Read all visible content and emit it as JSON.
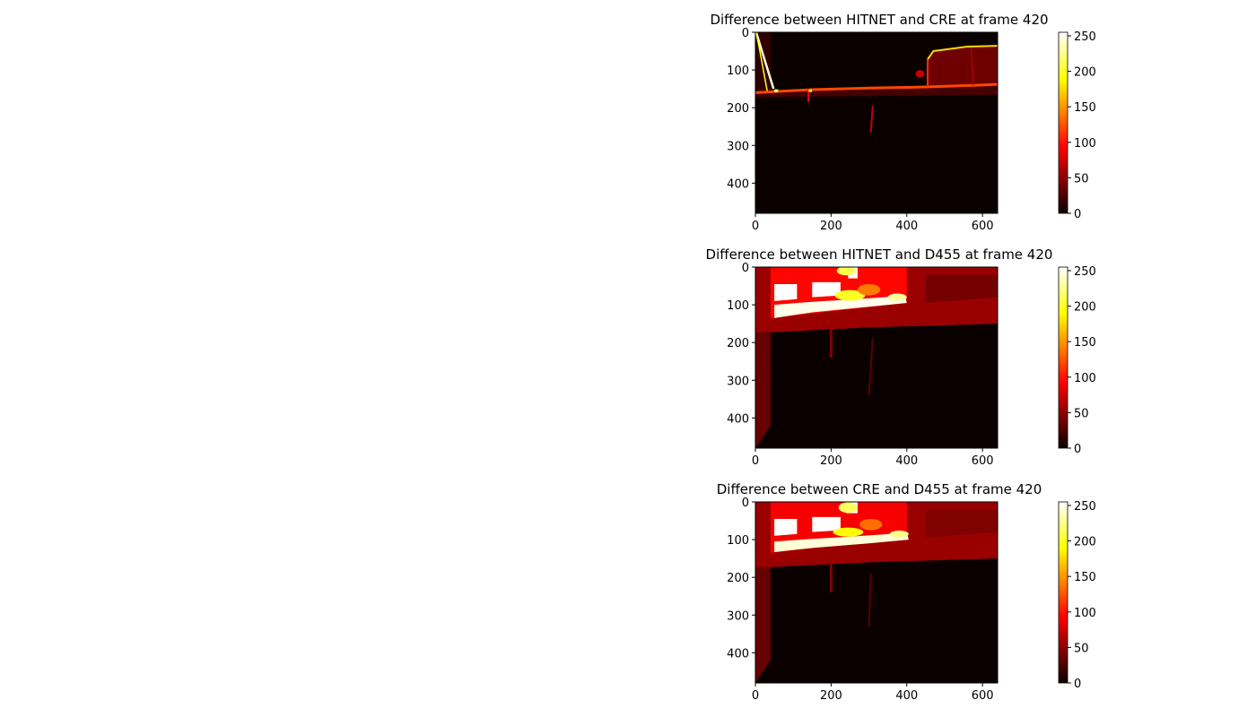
{
  "chart_data": [
    {
      "type": "heatmap",
      "title": "Difference between HITNET and CRE at frame 420",
      "xlim": [
        0,
        640
      ],
      "ylim": [
        480,
        0
      ],
      "xticks": [
        0,
        200,
        400,
        600
      ],
      "yticks": [
        0,
        100,
        200,
        300,
        400
      ],
      "colormap": "hot",
      "colorbar": {
        "range": [
          0,
          255
        ],
        "ticks": [
          0,
          50,
          100,
          150,
          200,
          250
        ]
      },
      "features": [
        {
          "kind": "poly",
          "pts": [
            [
              0,
              160
            ],
            [
              150,
              152
            ],
            [
              300,
              148
            ],
            [
              450,
              145
            ],
            [
              600,
              140
            ],
            [
              640,
              138
            ],
            [
              640,
              166
            ],
            [
              0,
              172
            ]
          ],
          "v": 22
        },
        {
          "kind": "poly",
          "pts": [
            [
              455,
              72
            ],
            [
              470,
              50
            ],
            [
              560,
              38
            ],
            [
              640,
              36
            ],
            [
              640,
              140
            ],
            [
              455,
              148
            ]
          ],
          "v": 38
        },
        {
          "kind": "poly",
          "pts": [
            [
              0,
              0
            ],
            [
              40,
              0
            ],
            [
              40,
              160
            ],
            [
              0,
              165
            ]
          ],
          "v": 14
        },
        {
          "kind": "line",
          "pts": [
            [
              2,
              0
            ],
            [
              25,
              75
            ],
            [
              48,
              150
            ]
          ],
          "v": 245,
          "w": 2.5
        },
        {
          "kind": "line",
          "pts": [
            [
              2,
              0
            ],
            [
              10,
              40
            ],
            [
              32,
              160
            ]
          ],
          "v": 200,
          "w": 1.5
        },
        {
          "kind": "line",
          "pts": [
            [
              0,
              160
            ],
            [
              150,
              152
            ],
            [
              300,
              148
            ],
            [
              450,
              145
            ],
            [
              600,
              140
            ],
            [
              640,
              138
            ]
          ],
          "v": 120,
          "w": 3
        },
        {
          "kind": "line",
          "pts": [
            [
              455,
              72
            ],
            [
              470,
              50
            ],
            [
              560,
              38
            ],
            [
              640,
              36
            ]
          ],
          "v": 175,
          "w": 2
        },
        {
          "kind": "line",
          "pts": [
            [
              455,
              72
            ],
            [
              455,
              145
            ]
          ],
          "v": 110,
          "w": 2
        },
        {
          "kind": "line",
          "pts": [
            [
              310,
              195
            ],
            [
              305,
              265
            ]
          ],
          "v": 70,
          "w": 2
        },
        {
          "kind": "line",
          "pts": [
            [
              140,
              150
            ],
            [
              140,
              185
            ]
          ],
          "v": 90,
          "w": 2
        },
        {
          "kind": "line",
          "pts": [
            [
              570,
              42
            ],
            [
              575,
              140
            ]
          ],
          "v": 60,
          "w": 1.5
        },
        {
          "kind": "blob",
          "cx": 55,
          "cy": 155,
          "rx": 6,
          "ry": 4,
          "v": 220
        },
        {
          "kind": "blob",
          "cx": 145,
          "cy": 155,
          "rx": 5,
          "ry": 4,
          "v": 180
        },
        {
          "kind": "blob",
          "cx": 435,
          "cy": 110,
          "rx": 12,
          "ry": 10,
          "v": 70
        }
      ]
    },
    {
      "type": "heatmap",
      "title": "Difference between HITNET and D455 at frame 420",
      "xlim": [
        0,
        640
      ],
      "ylim": [
        480,
        0
      ],
      "xticks": [
        0,
        200,
        400,
        600
      ],
      "yticks": [
        0,
        100,
        200,
        300,
        400
      ],
      "colormap": "hot",
      "colorbar": {
        "range": [
          0,
          255
        ],
        "ticks": [
          0,
          50,
          100,
          150,
          200,
          250
        ]
      },
      "features": [
        {
          "kind": "poly",
          "pts": [
            [
              0,
              0
            ],
            [
              640,
              0
            ],
            [
              640,
              150
            ],
            [
              300,
              160
            ],
            [
              0,
              175
            ]
          ],
          "v": 55
        },
        {
          "kind": "poly",
          "pts": [
            [
              0,
              175
            ],
            [
              40,
              170
            ],
            [
              40,
              420
            ],
            [
              0,
              480
            ]
          ],
          "v": 35
        },
        {
          "kind": "poly",
          "pts": [
            [
              40,
              0
            ],
            [
              400,
              0
            ],
            [
              400,
              95
            ],
            [
              40,
              135
            ]
          ],
          "v": 95
        },
        {
          "kind": "poly",
          "pts": [
            [
              450,
              20
            ],
            [
              640,
              20
            ],
            [
              640,
              80
            ],
            [
              450,
              95
            ]
          ],
          "v": 40
        },
        {
          "kind": "poly",
          "pts": [
            [
              50,
              100
            ],
            [
              150,
              92
            ],
            [
              250,
              86
            ],
            [
              340,
              80
            ],
            [
              395,
              75
            ],
            [
              400,
              95
            ],
            [
              300,
              105
            ],
            [
              150,
              120
            ],
            [
              50,
              135
            ]
          ],
          "v": 250
        },
        {
          "kind": "poly",
          "pts": [
            [
              50,
              45
            ],
            [
              110,
              45
            ],
            [
              110,
              85
            ],
            [
              50,
              90
            ]
          ],
          "v": 255
        },
        {
          "kind": "poly",
          "pts": [
            [
              150,
              40
            ],
            [
              225,
              40
            ],
            [
              225,
              75
            ],
            [
              150,
              80
            ]
          ],
          "v": 255
        },
        {
          "kind": "poly",
          "pts": [
            [
              245,
              0
            ],
            [
              270,
              0
            ],
            [
              270,
              30
            ],
            [
              245,
              30
            ]
          ],
          "v": 255
        },
        {
          "kind": "blob",
          "cx": 240,
          "cy": 10,
          "rx": 25,
          "ry": 12,
          "v": 210
        },
        {
          "kind": "blob",
          "cx": 250,
          "cy": 75,
          "rx": 40,
          "ry": 14,
          "v": 200
        },
        {
          "kind": "blob",
          "cx": 300,
          "cy": 60,
          "rx": 30,
          "ry": 15,
          "v": 140
        },
        {
          "kind": "blob",
          "cx": 375,
          "cy": 80,
          "rx": 25,
          "ry": 10,
          "v": 230
        },
        {
          "kind": "line",
          "pts": [
            [
              200,
              160
            ],
            [
              200,
              240
            ]
          ],
          "v": 45,
          "w": 3
        },
        {
          "kind": "line",
          "pts": [
            [
              310,
              190
            ],
            [
              300,
              340
            ]
          ],
          "v": 30,
          "w": 2
        }
      ]
    },
    {
      "type": "heatmap",
      "title": "Difference between CRE and D455 at frame 420",
      "xlim": [
        0,
        640
      ],
      "ylim": [
        480,
        0
      ],
      "xticks": [
        0,
        200,
        400,
        600
      ],
      "yticks": [
        0,
        100,
        200,
        300,
        400
      ],
      "colormap": "hot",
      "colorbar": {
        "range": [
          0,
          255
        ],
        "ticks": [
          0,
          50,
          100,
          150,
          200,
          250
        ]
      },
      "features": [
        {
          "kind": "poly",
          "pts": [
            [
              0,
              0
            ],
            [
              640,
              0
            ],
            [
              640,
              150
            ],
            [
              300,
              160
            ],
            [
              0,
              175
            ]
          ],
          "v": 55
        },
        {
          "kind": "poly",
          "pts": [
            [
              0,
              175
            ],
            [
              40,
              170
            ],
            [
              40,
              420
            ],
            [
              0,
              480
            ]
          ],
          "v": 35
        },
        {
          "kind": "poly",
          "pts": [
            [
              40,
              0
            ],
            [
              400,
              0
            ],
            [
              400,
              95
            ],
            [
              40,
              135
            ]
          ],
          "v": 90
        },
        {
          "kind": "poly",
          "pts": [
            [
              450,
              20
            ],
            [
              640,
              20
            ],
            [
              640,
              80
            ],
            [
              450,
              95
            ]
          ],
          "v": 45
        },
        {
          "kind": "poly",
          "pts": [
            [
              50,
              105
            ],
            [
              150,
              98
            ],
            [
              250,
              92
            ],
            [
              340,
              86
            ],
            [
              400,
              80
            ],
            [
              405,
              100
            ],
            [
              300,
              110
            ],
            [
              150,
              122
            ],
            [
              50,
              133
            ]
          ],
          "v": 245
        },
        {
          "kind": "poly",
          "pts": [
            [
              50,
              45
            ],
            [
              110,
              45
            ],
            [
              110,
              85
            ],
            [
              50,
              90
            ]
          ],
          "v": 255
        },
        {
          "kind": "poly",
          "pts": [
            [
              150,
              40
            ],
            [
              225,
              40
            ],
            [
              225,
              75
            ],
            [
              150,
              80
            ]
          ],
          "v": 255
        },
        {
          "kind": "poly",
          "pts": [
            [
              240,
              0
            ],
            [
              270,
              0
            ],
            [
              270,
              30
            ],
            [
              240,
              30
            ]
          ],
          "v": 255
        },
        {
          "kind": "blob",
          "cx": 245,
          "cy": 15,
          "rx": 25,
          "ry": 14,
          "v": 215
        },
        {
          "kind": "blob",
          "cx": 245,
          "cy": 80,
          "rx": 40,
          "ry": 12,
          "v": 190
        },
        {
          "kind": "blob",
          "cx": 305,
          "cy": 60,
          "rx": 30,
          "ry": 15,
          "v": 135
        },
        {
          "kind": "blob",
          "cx": 380,
          "cy": 85,
          "rx": 25,
          "ry": 9,
          "v": 225
        },
        {
          "kind": "line",
          "pts": [
            [
              200,
              160
            ],
            [
              200,
              240
            ]
          ],
          "v": 45,
          "w": 3
        },
        {
          "kind": "line",
          "pts": [
            [
              305,
              190
            ],
            [
              300,
              330
            ]
          ],
          "v": 30,
          "w": 2
        }
      ]
    }
  ]
}
